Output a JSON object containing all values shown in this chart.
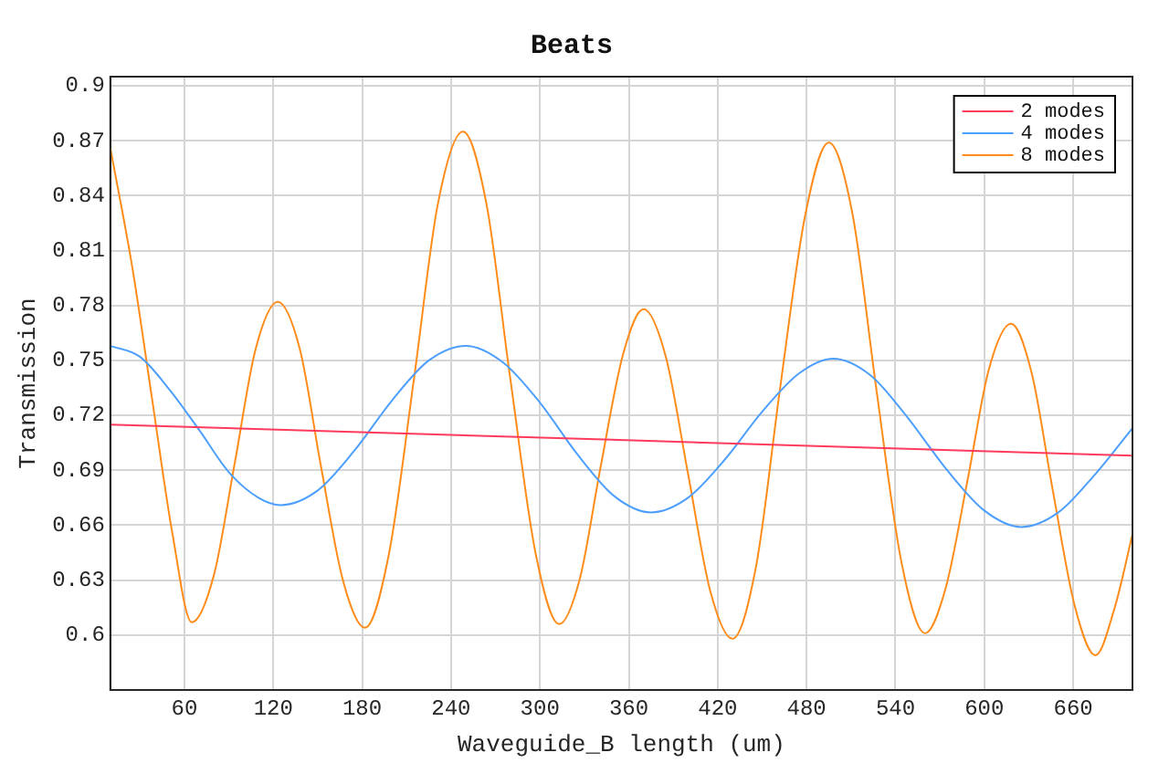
{
  "chart_data": {
    "type": "line",
    "title": "Beats",
    "xlabel": "Waveguide_B length (um)",
    "ylabel": "Transmission",
    "xlim": [
      10,
      700
    ],
    "ylim": [
      0.57,
      0.905
    ],
    "xticks": [
      60,
      120,
      180,
      240,
      300,
      360,
      420,
      480,
      540,
      600,
      660
    ],
    "yticks": [
      0.6,
      0.63,
      0.66,
      0.69,
      0.72,
      0.75,
      0.78,
      0.81,
      0.84,
      0.87,
      0.9
    ],
    "grid": true,
    "legend": "top right",
    "marker": "none",
    "line_style": "solid",
    "series": [
      {
        "name": "2 modes",
        "color": "#ff3a5c",
        "x": [
          10,
          700
        ],
        "values": [
          0.715,
          0.698
        ]
      },
      {
        "name": "4 modes",
        "color": "#4d9fff",
        "x": [
          10,
          30,
          50,
          70,
          90,
          110,
          125,
          150,
          175,
          200,
          225,
          250,
          275,
          300,
          325,
          350,
          375,
          400,
          425,
          450,
          475,
          498,
          523,
          548,
          574,
          600,
          625,
          650,
          675,
          700
        ],
        "values": [
          0.758,
          0.752,
          0.734,
          0.712,
          0.689,
          0.675,
          0.671,
          0.679,
          0.701,
          0.728,
          0.75,
          0.758,
          0.749,
          0.727,
          0.699,
          0.676,
          0.667,
          0.675,
          0.696,
          0.722,
          0.743,
          0.751,
          0.742,
          0.719,
          0.691,
          0.668,
          0.659,
          0.667,
          0.688,
          0.713
        ]
      },
      {
        "name": "8 modes",
        "color": "#ff8c1a",
        "x": [
          10,
          25,
          38,
          52,
          65,
          80,
          94,
          108,
          123,
          138,
          152,
          167,
          182,
          198,
          215,
          231,
          248,
          264,
          280,
          297,
          313,
          327,
          341,
          356,
          370,
          385,
          400,
          415,
          430,
          446,
          462,
          479,
          495,
          511,
          527,
          544,
          560,
          574,
          589,
          603,
          618,
          632,
          646,
          661,
          675,
          688,
          700
        ],
        "values": [
          0.866,
          0.8,
          0.73,
          0.655,
          0.607,
          0.633,
          0.694,
          0.756,
          0.782,
          0.756,
          0.693,
          0.63,
          0.604,
          0.644,
          0.74,
          0.835,
          0.875,
          0.835,
          0.74,
          0.645,
          0.606,
          0.631,
          0.692,
          0.753,
          0.778,
          0.752,
          0.688,
          0.624,
          0.598,
          0.638,
          0.734,
          0.829,
          0.869,
          0.83,
          0.735,
          0.64,
          0.601,
          0.626,
          0.686,
          0.745,
          0.77,
          0.743,
          0.68,
          0.616,
          0.589,
          0.615,
          0.655
        ]
      }
    ]
  }
}
